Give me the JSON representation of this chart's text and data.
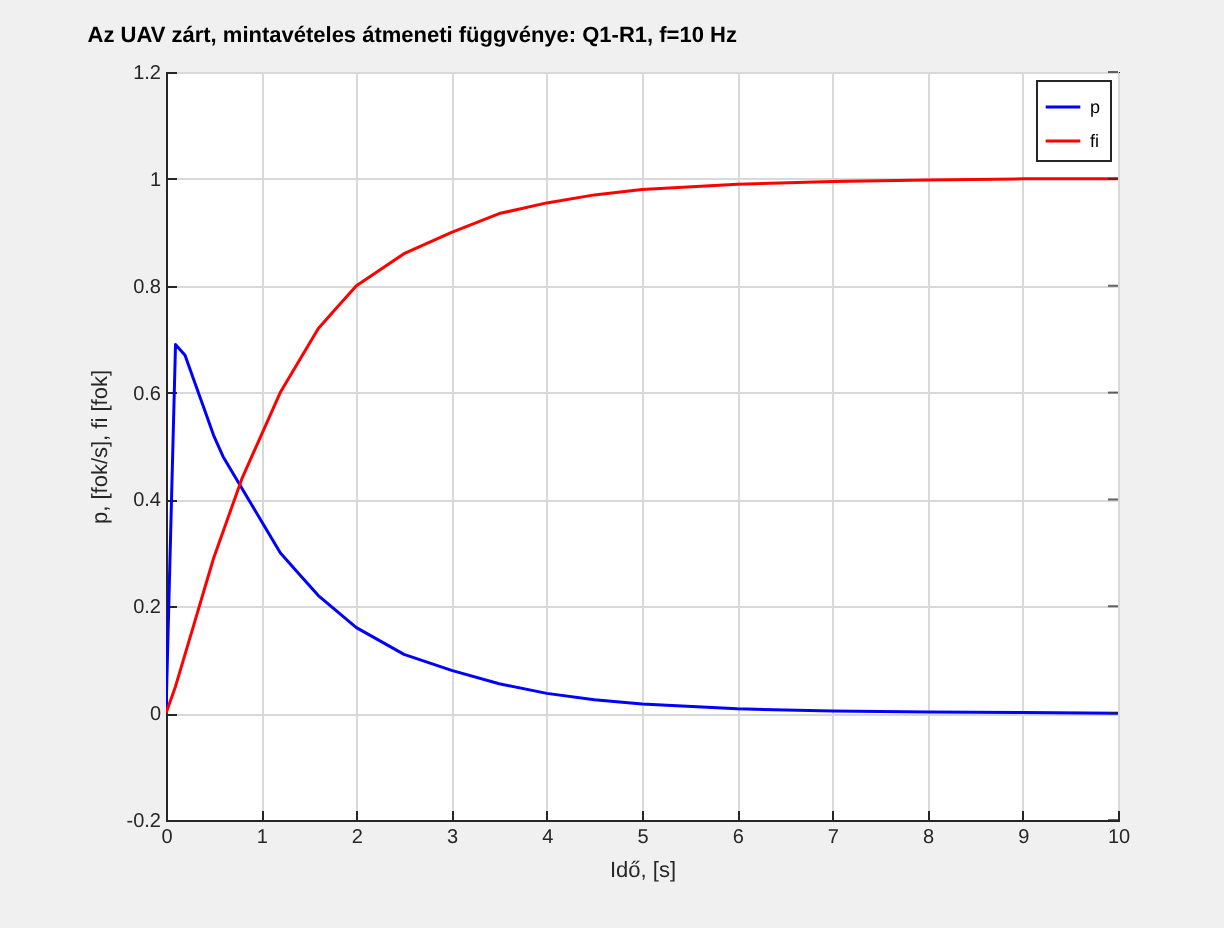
{
  "chart_data": {
    "type": "line",
    "title": "Az UAV zárt, mintavételes átmeneti függvénye: Q1-R1, f=10 Hz",
    "xlabel": "Idő, [s]",
    "ylabel": "p, [fok/s], fi [fok]",
    "x": [
      0,
      0.1,
      0.2,
      0.3,
      0.4,
      0.5,
      0.6,
      0.7,
      0.8,
      0.9,
      1.0,
      1.2,
      1.4,
      1.6,
      1.8,
      2,
      2.5,
      3,
      3.5,
      4,
      4.5,
      5,
      6,
      7,
      8,
      9,
      10
    ],
    "series": [
      {
        "name": "p",
        "color": "#0000ff",
        "values": [
          0,
          0.69,
          0.67,
          0.62,
          0.57,
          0.52,
          0.48,
          0.45,
          0.42,
          0.39,
          0.36,
          0.3,
          0.26,
          0.22,
          0.19,
          0.16,
          0.11,
          0.08,
          0.055,
          0.037,
          0.025,
          0.017,
          0.008,
          0.004,
          0.002,
          0.001,
          0
        ]
      },
      {
        "name": "fi",
        "color": "#ff0000",
        "values": [
          0,
          0.05,
          0.11,
          0.17,
          0.23,
          0.29,
          0.34,
          0.39,
          0.44,
          0.48,
          0.52,
          0.6,
          0.66,
          0.72,
          0.76,
          0.8,
          0.86,
          0.9,
          0.935,
          0.955,
          0.97,
          0.98,
          0.99,
          0.995,
          0.998,
          1,
          1
        ]
      }
    ],
    "xlim": [
      0,
      10
    ],
    "xticks": [
      0,
      1,
      2,
      3,
      4,
      5,
      6,
      7,
      8,
      9,
      10
    ],
    "ylim": [
      -0.2,
      1.2
    ],
    "yticks": [
      -0.2,
      0,
      0.2,
      0.4,
      0.6,
      0.8,
      1,
      1.2
    ],
    "grid": true,
    "legend": "top right",
    "line_style": "solid"
  }
}
